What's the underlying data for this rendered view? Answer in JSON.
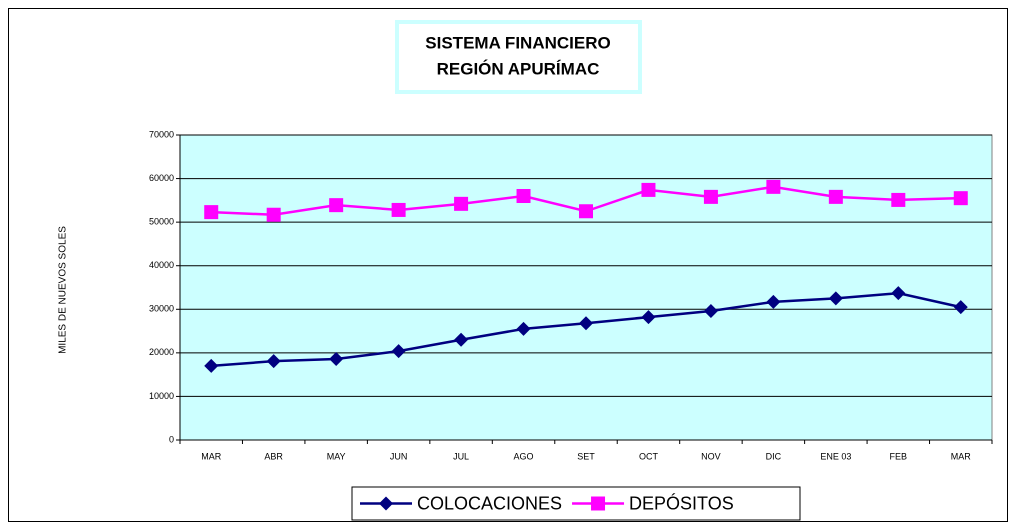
{
  "chart_data": {
    "type": "line",
    "title": [
      "SISTEMA FINANCIERO",
      "REGIÓN  APURÍMAC"
    ],
    "y_label": "MILES DE NUEVOS SOLES",
    "categories": [
      "MAR",
      "ABR",
      "MAY",
      "JUN",
      "JUL",
      "AGO",
      "SET",
      "OCT",
      "NOV",
      "DIC",
      "ENE 03",
      "FEB",
      "MAR"
    ],
    "series": [
      {
        "name": "COLOCACIONES",
        "color": "#000080",
        "marker": "diamond",
        "values": [
          17000,
          18100,
          18600,
          20400,
          23000,
          25500,
          26800,
          28200,
          29600,
          31700,
          32500,
          33700,
          30500
        ]
      },
      {
        "name": "DEPÓSITOS",
        "color": "#ff00ff",
        "marker": "square",
        "values": [
          52300,
          51700,
          53900,
          52800,
          54200,
          56000,
          52500,
          57400,
          55800,
          58100,
          55800,
          55100,
          55500
        ]
      }
    ],
    "ylim": [
      0,
      70000
    ],
    "yticks": [
      0,
      10000,
      20000,
      30000,
      40000,
      50000,
      60000,
      70000
    ],
    "grid": true,
    "plot_background": "#ccffff",
    "legend": "bottom"
  }
}
